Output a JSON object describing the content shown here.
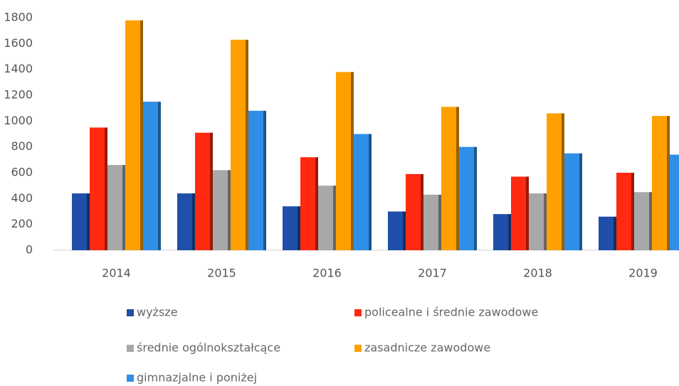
{
  "chart_data": {
    "type": "bar",
    "categories": [
      "2014",
      "2015",
      "2016",
      "2017",
      "2018",
      "2019"
    ],
    "series": [
      {
        "name": "wyższe",
        "color": "#1f4fa8",
        "values": [
          440,
          440,
          340,
          300,
          280,
          260
        ]
      },
      {
        "name": "policealne i średnie zawodowe",
        "color": "#ff2a10",
        "values": [
          950,
          910,
          720,
          590,
          570,
          600
        ]
      },
      {
        "name": "średnie ogólnokształcące",
        "color": "#a8a8a8",
        "values": [
          660,
          620,
          500,
          430,
          440,
          450
        ]
      },
      {
        "name": "zasadnicze zawodowe",
        "color": "#ffa000",
        "values": [
          1780,
          1630,
          1380,
          1110,
          1060,
          1040
        ]
      },
      {
        "name": "gimnazjalne i poniżej",
        "color": "#2f8fe8",
        "values": [
          1150,
          1080,
          900,
          800,
          750,
          740
        ]
      }
    ],
    "ylim": [
      0,
      1800
    ],
    "yticks": [
      0,
      200,
      400,
      600,
      800,
      1000,
      1200,
      1400,
      1600,
      1800
    ],
    "legend": "bottom"
  }
}
